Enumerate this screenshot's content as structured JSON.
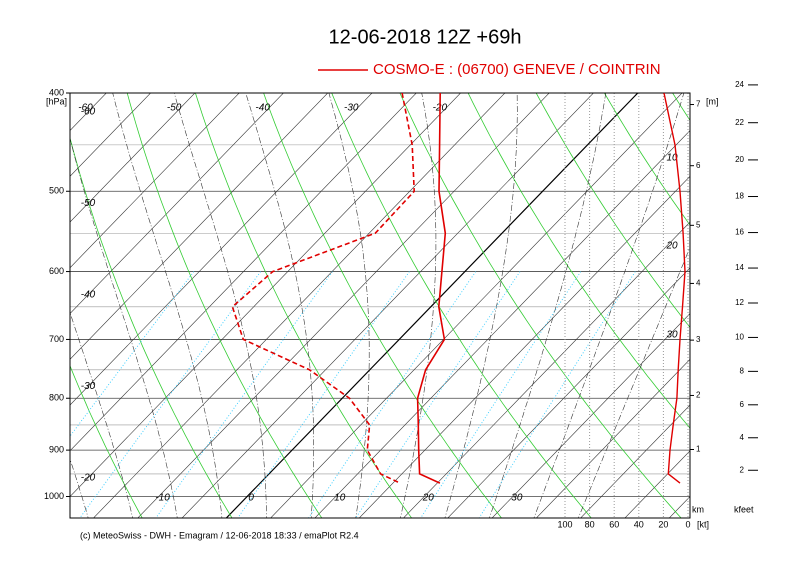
{
  "chart_data": {
    "type": "emagram",
    "title": "12-06-2018  12Z +69h",
    "legend": "COSMO-E : (06700)  GENEVE / COINTRIN",
    "footer": "(c) MeteoSwiss - DWH - Emagram / 12-06-2018  18:33 / emaPlot R2.4",
    "y_unit": "[hPa]",
    "height_unit": "[m]",
    "km_label": "km",
    "kfeet_label": "kfeet",
    "wind_unit": "[kt]",
    "log_y": true,
    "ylim": [
      400,
      1050
    ],
    "yticks": [
      400,
      500,
      600,
      700,
      800,
      900,
      1000
    ],
    "yminor": [
      450,
      550,
      650,
      750,
      850,
      950
    ],
    "xlim": [
      -20,
      50
    ],
    "xticks_top": [
      -60,
      -50,
      -40,
      -30,
      -20
    ],
    "xticks_left": [
      -60,
      -50,
      -40,
      -30,
      -20
    ],
    "xticks_bottom": [
      -10,
      0,
      10,
      20,
      30
    ],
    "km_ticks": [
      1,
      2,
      3,
      4,
      5,
      6,
      7
    ],
    "kfeet_ticks": [
      2,
      4,
      6,
      8,
      10,
      12,
      14,
      16,
      18,
      20,
      22,
      24
    ],
    "wind_xlim": [
      0,
      100
    ],
    "wind_ticks": [
      100,
      80,
      60,
      40,
      20,
      0
    ],
    "speed_labels": [
      10,
      20,
      30
    ],
    "pressure": [
      400,
      450,
      500,
      550,
      600,
      650,
      700,
      750,
      800,
      850,
      900,
      950,
      970
    ],
    "series": [
      {
        "name": "temperature",
        "color": "#e00000",
        "dash": false,
        "values": [
          -22.3,
          -16.7,
          -11.7,
          -6.4,
          -2.6,
          0.9,
          5.1,
          6.3,
          8.5,
          11.5,
          14.3,
          17.0,
          20.3
        ]
      },
      {
        "name": "dewpoint",
        "color": "#e00000",
        "dash": true,
        "values": [
          -26.6,
          -19.8,
          -14.5,
          -14.3,
          -21.7,
          -22.4,
          -17.6,
          -6.8,
          0.8,
          6.0,
          8.5,
          12.6,
          15.8
        ]
      }
    ],
    "wind_speed": {
      "color": "#e00000",
      "values": [
        19.5,
        10.6,
        6.5,
        4.0,
        2.4,
        4.5,
        6.5,
        8.0,
        9.0,
        12.0,
        14.6,
        16.0,
        6.5
      ]
    }
  }
}
